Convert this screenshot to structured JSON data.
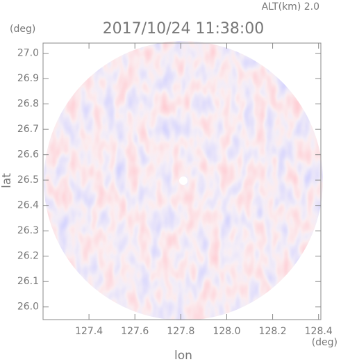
{
  "chart_data": {
    "type": "radar-ppi",
    "title": "2017/10/24 11:38:00",
    "annotation": "ALT(km) 2.0",
    "x_unit": "(deg)",
    "y_unit": "(deg)",
    "xlabel": "lon",
    "ylabel": "lat",
    "xlim": [
      127.2,
      128.41
    ],
    "ylim": [
      25.95,
      27.04
    ],
    "xticks": [
      127.4,
      127.6,
      127.8,
      {
        "value": 128,
        "label": "128.0"
      },
      128.2,
      128.4
    ],
    "yticks": [
      {
        "value": 26,
        "label": "26.0"
      },
      26.1,
      26.2,
      26.3,
      26.4,
      26.5,
      26.6,
      26.7,
      26.8,
      26.9,
      {
        "value": 27,
        "label": "27.0"
      }
    ]
  }
}
